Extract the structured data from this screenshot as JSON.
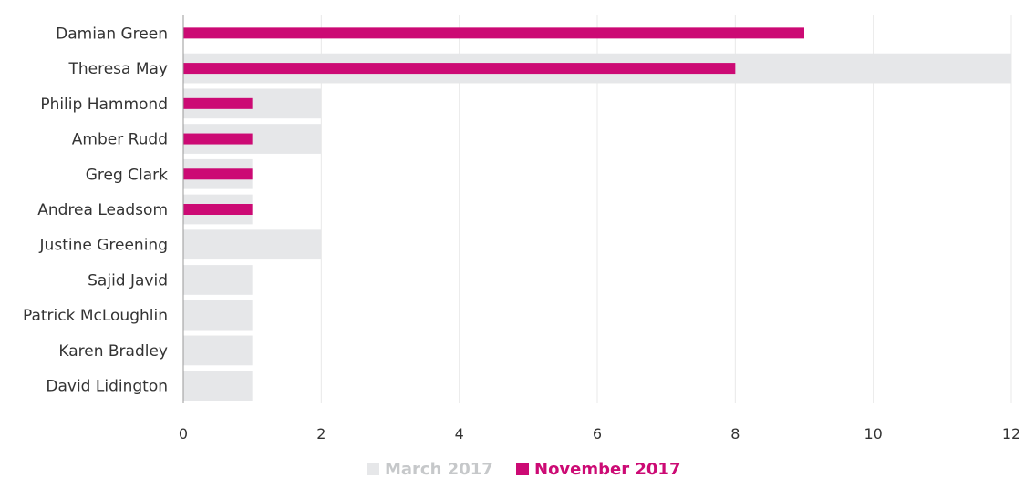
{
  "chart_data": {
    "type": "bar",
    "orientation": "horizontal",
    "categories": [
      "Damian Green",
      "Theresa May",
      "Philip Hammond",
      "Amber Rudd",
      "Greg Clark",
      "Andrea Leadsom",
      "Justine Greening",
      "Sajid Javid",
      "Patrick McLoughlin",
      "Karen Bradley",
      "David Lidington"
    ],
    "series": [
      {
        "name": "March 2017",
        "color": "#e6e7e9",
        "values": [
          0,
          12,
          2,
          2,
          1,
          1,
          2,
          1,
          1,
          1,
          1
        ]
      },
      {
        "name": "November 2017",
        "color": "#cc0a74",
        "values": [
          9,
          8,
          1,
          1,
          1,
          1,
          0,
          0,
          0,
          0,
          0
        ]
      }
    ],
    "xlim": [
      0,
      12
    ],
    "xticks": [
      0,
      2,
      4,
      6,
      8,
      10,
      12
    ],
    "title": "",
    "xlabel": "",
    "ylabel": "",
    "grid": "vertical",
    "legend_position": "bottom-center"
  },
  "colors": {
    "grid": "#e8e8e8",
    "axis": "#999999",
    "legend_march_text": "#c6c8ca",
    "legend_november_text": "#cc0a74"
  }
}
